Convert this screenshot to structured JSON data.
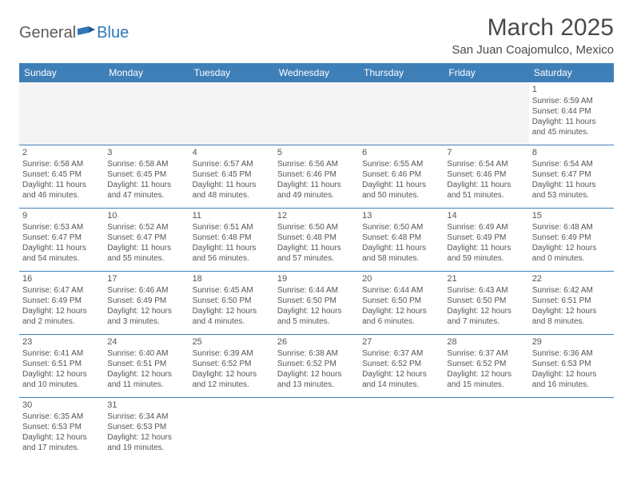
{
  "brand": {
    "part1": "General",
    "part2": "Blue"
  },
  "title": "March 2025",
  "location": "San Juan Coajomulco, Mexico",
  "colors": {
    "header_bg": "#3f7fb8",
    "header_text": "#ffffff",
    "empty_bg": "#f4f4f4",
    "text": "#555555",
    "border": "#3f7fb8"
  },
  "day_names": [
    "Sunday",
    "Monday",
    "Tuesday",
    "Wednesday",
    "Thursday",
    "Friday",
    "Saturday"
  ],
  "weeks": [
    [
      {
        "empty": true
      },
      {
        "empty": true
      },
      {
        "empty": true
      },
      {
        "empty": true
      },
      {
        "empty": true
      },
      {
        "empty": true
      },
      {
        "num": "1",
        "sunrise": "Sunrise: 6:59 AM",
        "sunset": "Sunset: 6:44 PM",
        "day1": "Daylight: 11 hours",
        "day2": "and 45 minutes."
      }
    ],
    [
      {
        "num": "2",
        "sunrise": "Sunrise: 6:58 AM",
        "sunset": "Sunset: 6:45 PM",
        "day1": "Daylight: 11 hours",
        "day2": "and 46 minutes."
      },
      {
        "num": "3",
        "sunrise": "Sunrise: 6:58 AM",
        "sunset": "Sunset: 6:45 PM",
        "day1": "Daylight: 11 hours",
        "day2": "and 47 minutes."
      },
      {
        "num": "4",
        "sunrise": "Sunrise: 6:57 AM",
        "sunset": "Sunset: 6:45 PM",
        "day1": "Daylight: 11 hours",
        "day2": "and 48 minutes."
      },
      {
        "num": "5",
        "sunrise": "Sunrise: 6:56 AM",
        "sunset": "Sunset: 6:46 PM",
        "day1": "Daylight: 11 hours",
        "day2": "and 49 minutes."
      },
      {
        "num": "6",
        "sunrise": "Sunrise: 6:55 AM",
        "sunset": "Sunset: 6:46 PM",
        "day1": "Daylight: 11 hours",
        "day2": "and 50 minutes."
      },
      {
        "num": "7",
        "sunrise": "Sunrise: 6:54 AM",
        "sunset": "Sunset: 6:46 PM",
        "day1": "Daylight: 11 hours",
        "day2": "and 51 minutes."
      },
      {
        "num": "8",
        "sunrise": "Sunrise: 6:54 AM",
        "sunset": "Sunset: 6:47 PM",
        "day1": "Daylight: 11 hours",
        "day2": "and 53 minutes."
      }
    ],
    [
      {
        "num": "9",
        "sunrise": "Sunrise: 6:53 AM",
        "sunset": "Sunset: 6:47 PM",
        "day1": "Daylight: 11 hours",
        "day2": "and 54 minutes."
      },
      {
        "num": "10",
        "sunrise": "Sunrise: 6:52 AM",
        "sunset": "Sunset: 6:47 PM",
        "day1": "Daylight: 11 hours",
        "day2": "and 55 minutes."
      },
      {
        "num": "11",
        "sunrise": "Sunrise: 6:51 AM",
        "sunset": "Sunset: 6:48 PM",
        "day1": "Daylight: 11 hours",
        "day2": "and 56 minutes."
      },
      {
        "num": "12",
        "sunrise": "Sunrise: 6:50 AM",
        "sunset": "Sunset: 6:48 PM",
        "day1": "Daylight: 11 hours",
        "day2": "and 57 minutes."
      },
      {
        "num": "13",
        "sunrise": "Sunrise: 6:50 AM",
        "sunset": "Sunset: 6:48 PM",
        "day1": "Daylight: 11 hours",
        "day2": "and 58 minutes."
      },
      {
        "num": "14",
        "sunrise": "Sunrise: 6:49 AM",
        "sunset": "Sunset: 6:49 PM",
        "day1": "Daylight: 11 hours",
        "day2": "and 59 minutes."
      },
      {
        "num": "15",
        "sunrise": "Sunrise: 6:48 AM",
        "sunset": "Sunset: 6:49 PM",
        "day1": "Daylight: 12 hours",
        "day2": "and 0 minutes."
      }
    ],
    [
      {
        "num": "16",
        "sunrise": "Sunrise: 6:47 AM",
        "sunset": "Sunset: 6:49 PM",
        "day1": "Daylight: 12 hours",
        "day2": "and 2 minutes."
      },
      {
        "num": "17",
        "sunrise": "Sunrise: 6:46 AM",
        "sunset": "Sunset: 6:49 PM",
        "day1": "Daylight: 12 hours",
        "day2": "and 3 minutes."
      },
      {
        "num": "18",
        "sunrise": "Sunrise: 6:45 AM",
        "sunset": "Sunset: 6:50 PM",
        "day1": "Daylight: 12 hours",
        "day2": "and 4 minutes."
      },
      {
        "num": "19",
        "sunrise": "Sunrise: 6:44 AM",
        "sunset": "Sunset: 6:50 PM",
        "day1": "Daylight: 12 hours",
        "day2": "and 5 minutes."
      },
      {
        "num": "20",
        "sunrise": "Sunrise: 6:44 AM",
        "sunset": "Sunset: 6:50 PM",
        "day1": "Daylight: 12 hours",
        "day2": "and 6 minutes."
      },
      {
        "num": "21",
        "sunrise": "Sunrise: 6:43 AM",
        "sunset": "Sunset: 6:50 PM",
        "day1": "Daylight: 12 hours",
        "day2": "and 7 minutes."
      },
      {
        "num": "22",
        "sunrise": "Sunrise: 6:42 AM",
        "sunset": "Sunset: 6:51 PM",
        "day1": "Daylight: 12 hours",
        "day2": "and 8 minutes."
      }
    ],
    [
      {
        "num": "23",
        "sunrise": "Sunrise: 6:41 AM",
        "sunset": "Sunset: 6:51 PM",
        "day1": "Daylight: 12 hours",
        "day2": "and 10 minutes."
      },
      {
        "num": "24",
        "sunrise": "Sunrise: 6:40 AM",
        "sunset": "Sunset: 6:51 PM",
        "day1": "Daylight: 12 hours",
        "day2": "and 11 minutes."
      },
      {
        "num": "25",
        "sunrise": "Sunrise: 6:39 AM",
        "sunset": "Sunset: 6:52 PM",
        "day1": "Daylight: 12 hours",
        "day2": "and 12 minutes."
      },
      {
        "num": "26",
        "sunrise": "Sunrise: 6:38 AM",
        "sunset": "Sunset: 6:52 PM",
        "day1": "Daylight: 12 hours",
        "day2": "and 13 minutes."
      },
      {
        "num": "27",
        "sunrise": "Sunrise: 6:37 AM",
        "sunset": "Sunset: 6:52 PM",
        "day1": "Daylight: 12 hours",
        "day2": "and 14 minutes."
      },
      {
        "num": "28",
        "sunrise": "Sunrise: 6:37 AM",
        "sunset": "Sunset: 6:52 PM",
        "day1": "Daylight: 12 hours",
        "day2": "and 15 minutes."
      },
      {
        "num": "29",
        "sunrise": "Sunrise: 6:36 AM",
        "sunset": "Sunset: 6:53 PM",
        "day1": "Daylight: 12 hours",
        "day2": "and 16 minutes."
      }
    ],
    [
      {
        "num": "30",
        "sunrise": "Sunrise: 6:35 AM",
        "sunset": "Sunset: 6:53 PM",
        "day1": "Daylight: 12 hours",
        "day2": "and 17 minutes."
      },
      {
        "num": "31",
        "sunrise": "Sunrise: 6:34 AM",
        "sunset": "Sunset: 6:53 PM",
        "day1": "Daylight: 12 hours",
        "day2": "and 19 minutes."
      },
      {
        "empty": true,
        "blank": true
      },
      {
        "empty": true,
        "blank": true
      },
      {
        "empty": true,
        "blank": true
      },
      {
        "empty": true,
        "blank": true
      },
      {
        "empty": true,
        "blank": true
      }
    ]
  ]
}
